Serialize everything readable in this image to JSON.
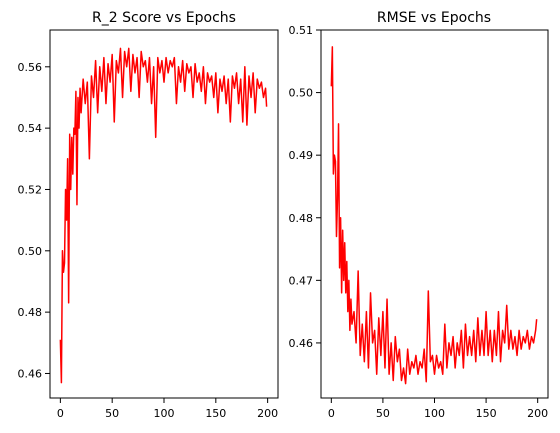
{
  "chart_data": [
    {
      "type": "line",
      "title": "R_2 Score vs Epochs",
      "xlabel": "",
      "ylabel": "",
      "xlim": [
        -10,
        210
      ],
      "ylim": [
        0.452,
        0.572
      ],
      "xticks": [
        0,
        50,
        100,
        150,
        200
      ],
      "yticks": [
        0.46,
        0.48,
        0.5,
        0.52,
        0.54,
        0.56
      ],
      "ytick_labels": [
        "0.46",
        "0.48",
        "0.50",
        "0.52",
        "0.54",
        "0.56"
      ],
      "grid": false,
      "series": [
        {
          "color": "#ff0000",
          "x": [
            0,
            1,
            2,
            3,
            4,
            5,
            6,
            7,
            8,
            9,
            10,
            11,
            12,
            13,
            14,
            15,
            16,
            17,
            18,
            19,
            20,
            22,
            24,
            26,
            28,
            30,
            32,
            34,
            36,
            38,
            40,
            42,
            44,
            46,
            48,
            50,
            52,
            54,
            56,
            58,
            60,
            62,
            64,
            66,
            68,
            70,
            72,
            74,
            76,
            78,
            80,
            82,
            84,
            86,
            88,
            90,
            92,
            94,
            96,
            98,
            100,
            102,
            104,
            106,
            108,
            110,
            112,
            114,
            116,
            118,
            120,
            122,
            124,
            126,
            128,
            130,
            132,
            134,
            136,
            138,
            140,
            142,
            144,
            146,
            148,
            150,
            152,
            154,
            156,
            158,
            160,
            162,
            164,
            166,
            168,
            170,
            172,
            174,
            176,
            178,
            180,
            182,
            184,
            186,
            188,
            190,
            192,
            194,
            196,
            198,
            199
          ],
          "y": [
            0.471,
            0.457,
            0.5,
            0.493,
            0.496,
            0.52,
            0.51,
            0.53,
            0.483,
            0.538,
            0.52,
            0.537,
            0.525,
            0.54,
            0.538,
            0.552,
            0.515,
            0.55,
            0.54,
            0.553,
            0.545,
            0.556,
            0.548,
            0.555,
            0.53,
            0.557,
            0.55,
            0.562,
            0.545,
            0.56,
            0.552,
            0.563,
            0.548,
            0.561,
            0.555,
            0.564,
            0.542,
            0.562,
            0.558,
            0.566,
            0.55,
            0.565,
            0.56,
            0.566,
            0.552,
            0.564,
            0.558,
            0.563,
            0.55,
            0.565,
            0.56,
            0.562,
            0.555,
            0.563,
            0.548,
            0.56,
            0.537,
            0.563,
            0.558,
            0.562,
            0.555,
            0.563,
            0.558,
            0.562,
            0.56,
            0.563,
            0.548,
            0.56,
            0.555,
            0.562,
            0.552,
            0.561,
            0.558,
            0.56,
            0.55,
            0.561,
            0.555,
            0.558,
            0.552,
            0.56,
            0.548,
            0.558,
            0.555,
            0.557,
            0.55,
            0.558,
            0.545,
            0.556,
            0.552,
            0.557,
            0.548,
            0.556,
            0.542,
            0.557,
            0.553,
            0.558,
            0.548,
            0.556,
            0.542,
            0.56,
            0.541,
            0.557,
            0.55,
            0.558,
            0.545,
            0.556,
            0.553,
            0.555,
            0.55,
            0.553,
            0.547
          ]
        }
      ]
    },
    {
      "type": "line",
      "title": "RMSE vs Epochs",
      "xlabel": "",
      "ylabel": "",
      "xlim": [
        -10,
        210
      ],
      "ylim": [
        0.4512,
        0.51
      ],
      "xticks": [
        0,
        50,
        100,
        150,
        200
      ],
      "yticks": [
        0.46,
        0.47,
        0.48,
        0.49,
        0.5,
        0.51
      ],
      "ytick_labels": [
        "0.46",
        "0.47",
        "0.48",
        "0.49",
        "0.50",
        "0.51"
      ],
      "grid": false,
      "series": [
        {
          "color": "#ff0000",
          "x": [
            0,
            1,
            2,
            3,
            4,
            5,
            6,
            7,
            8,
            9,
            10,
            11,
            12,
            13,
            14,
            15,
            16,
            17,
            18,
            19,
            20,
            22,
            24,
            26,
            28,
            30,
            32,
            34,
            36,
            38,
            40,
            42,
            44,
            46,
            48,
            50,
            52,
            54,
            56,
            58,
            60,
            62,
            64,
            66,
            68,
            70,
            72,
            74,
            76,
            78,
            80,
            82,
            84,
            86,
            88,
            90,
            92,
            94,
            96,
            98,
            100,
            102,
            104,
            106,
            108,
            110,
            112,
            114,
            116,
            118,
            120,
            122,
            124,
            126,
            128,
            130,
            132,
            134,
            136,
            138,
            140,
            142,
            144,
            146,
            148,
            150,
            152,
            154,
            156,
            158,
            160,
            162,
            164,
            166,
            168,
            170,
            172,
            174,
            176,
            178,
            180,
            182,
            184,
            186,
            188,
            190,
            192,
            194,
            196,
            198,
            199
          ],
          "y": [
            0.501,
            0.5073,
            0.487,
            0.49,
            0.489,
            0.477,
            0.483,
            0.495,
            0.472,
            0.48,
            0.468,
            0.478,
            0.47,
            0.476,
            0.468,
            0.473,
            0.465,
            0.47,
            0.462,
            0.467,
            0.463,
            0.465,
            0.46,
            0.4715,
            0.458,
            0.463,
            0.457,
            0.465,
            0.456,
            0.468,
            0.46,
            0.462,
            0.455,
            0.464,
            0.458,
            0.465,
            0.456,
            0.467,
            0.455,
            0.46,
            0.454,
            0.461,
            0.457,
            0.459,
            0.454,
            0.456,
            0.4535,
            0.459,
            0.455,
            0.457,
            0.456,
            0.458,
            0.455,
            0.457,
            0.456,
            0.459,
            0.4538,
            0.4683,
            0.457,
            0.458,
            0.455,
            0.458,
            0.456,
            0.457,
            0.455,
            0.463,
            0.456,
            0.46,
            0.458,
            0.461,
            0.456,
            0.46,
            0.458,
            0.462,
            0.456,
            0.463,
            0.458,
            0.461,
            0.458,
            0.462,
            0.457,
            0.464,
            0.458,
            0.462,
            0.458,
            0.465,
            0.458,
            0.462,
            0.457,
            0.462,
            0.458,
            0.465,
            0.457,
            0.462,
            0.46,
            0.466,
            0.459,
            0.462,
            0.459,
            0.461,
            0.458,
            0.462,
            0.459,
            0.461,
            0.46,
            0.462,
            0.459,
            0.461,
            0.46,
            0.462,
            0.4638
          ]
        }
      ]
    }
  ]
}
